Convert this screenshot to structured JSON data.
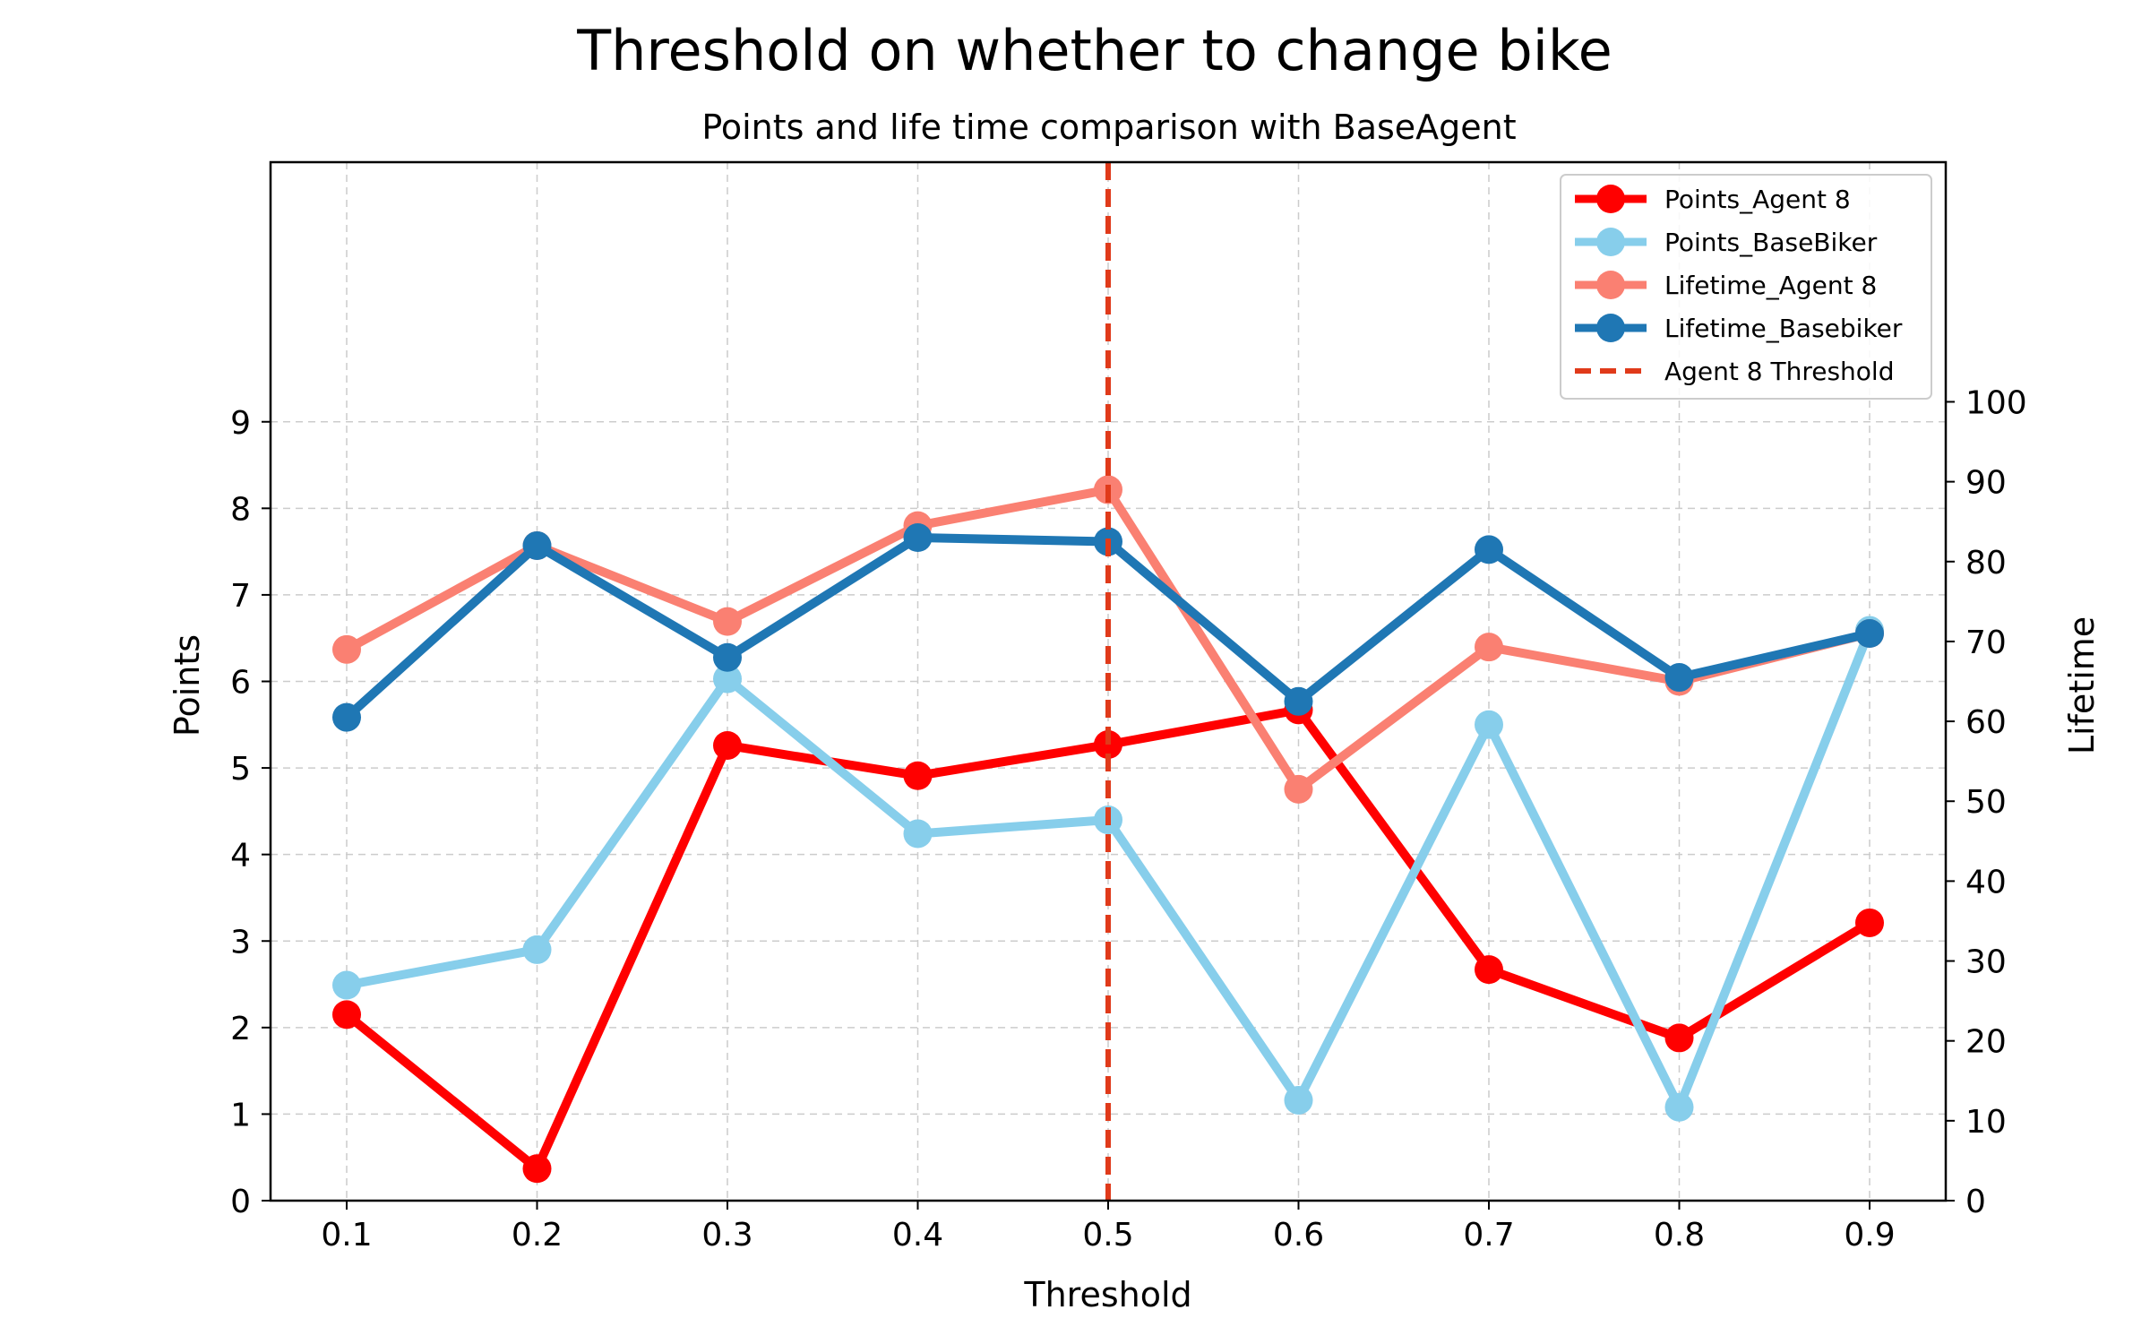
{
  "chart_data": {
    "type": "line",
    "title": "Threshold on whether to change bike",
    "subtitle": "Points and life time comparison with BaseAgent",
    "xlabel": "Threshold",
    "ylabel_left": "Points",
    "ylabel_right": "Lifetime",
    "x": [
      0.1,
      0.2,
      0.3,
      0.4,
      0.5,
      0.6,
      0.7,
      0.8,
      0.9
    ],
    "x_tick_labels": [
      "0.1",
      "0.2",
      "0.3",
      "0.4",
      "0.5",
      "0.6",
      "0.7",
      "0.8",
      "0.9"
    ],
    "xlim": [
      0.06,
      0.94
    ],
    "ylim_left": [
      0,
      12
    ],
    "yticks_left": [
      0,
      1,
      2,
      3,
      4,
      5,
      6,
      7,
      8,
      9
    ],
    "ylim_right": [
      0,
      130
    ],
    "yticks_right": [
      0,
      10,
      20,
      30,
      40,
      50,
      60,
      70,
      80,
      90,
      100
    ],
    "grid": true,
    "legend_position": "top-right",
    "series": [
      {
        "name": "Points_Agent 8",
        "axis": "left",
        "color": "#ff0000",
        "values": [
          2.15,
          0.37,
          5.26,
          4.91,
          5.27,
          5.67,
          2.67,
          1.88,
          3.21
        ]
      },
      {
        "name": "Points_BaseBiker",
        "axis": "left",
        "color": "#87ceeb",
        "values": [
          2.49,
          2.9,
          6.03,
          4.24,
          4.4,
          1.16,
          5.5,
          1.08,
          6.59
        ]
      },
      {
        "name": "Lifetime_Agent 8",
        "axis": "right",
        "color": "#fa8072",
        "values": [
          69,
          82,
          72.5,
          84.5,
          89,
          51.5,
          69.3,
          65,
          71
        ]
      },
      {
        "name": "Lifetime_Basebiker",
        "axis": "right",
        "color": "#1f77b4",
        "values": [
          60.5,
          82,
          68,
          83,
          82.5,
          62.5,
          81.5,
          65.5,
          71
        ]
      }
    ],
    "vline": {
      "name": "Agent 8 Threshold",
      "x": 0.5,
      "color": "#e03a1a"
    }
  }
}
